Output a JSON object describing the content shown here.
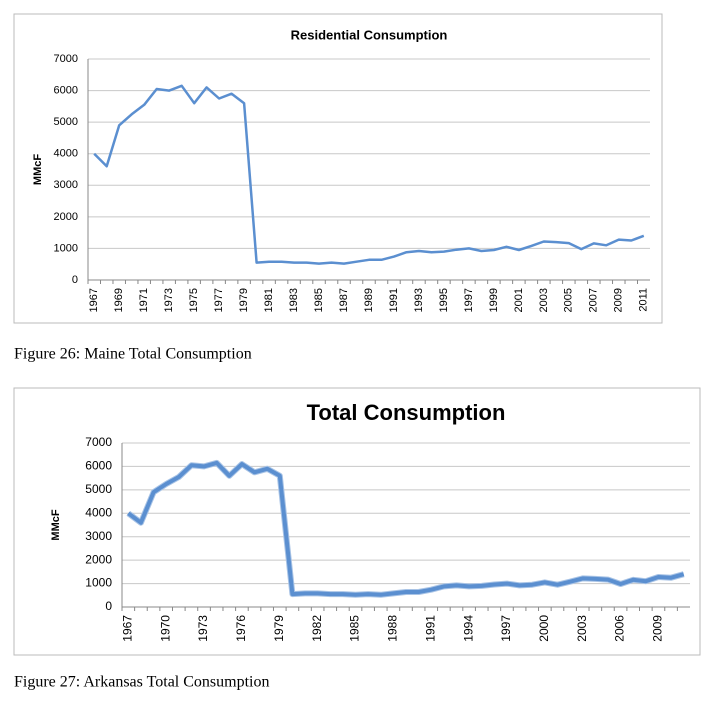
{
  "chart_data": [
    {
      "type": "line",
      "title": "Residential Consumption",
      "ylabel": "MMcF",
      "caption": "Figure 26: Maine Total Consumption",
      "categories": [
        "1967",
        null,
        "1969",
        null,
        "1971",
        null,
        "1973",
        null,
        "1975",
        null,
        "1977",
        null,
        "1979",
        null,
        "1981",
        null,
        "1983",
        null,
        "1985",
        null,
        "1987",
        null,
        "1989",
        null,
        "1991",
        null,
        "1993",
        null,
        "1995",
        null,
        "1997",
        null,
        "1999",
        null,
        "2001",
        null,
        "2003",
        null,
        "2005",
        null,
        "2007",
        null,
        "2009",
        null,
        "2011"
      ],
      "series": [
        {
          "name": "Residential Consumption",
          "color": "#5b8fd0",
          "values": [
            4000,
            3600,
            4900,
            5250,
            5550,
            6050,
            6000,
            6150,
            5600,
            6100,
            5750,
            5900,
            5600,
            550,
            580,
            580,
            550,
            550,
            520,
            550,
            520,
            580,
            640,
            640,
            740,
            880,
            920,
            880,
            900,
            960,
            1000,
            920,
            950,
            1050,
            950,
            1080,
            1220,
            1200,
            1170,
            980,
            1160,
            1100,
            1280,
            1250,
            1400
          ]
        }
      ],
      "ylim": [
        0,
        7000
      ],
      "yticks": [
        0,
        1000,
        2000,
        3000,
        4000,
        5000,
        6000,
        7000
      ],
      "grid": true
    },
    {
      "type": "line",
      "title": "Total Consumption",
      "ylabel": "MMcF",
      "caption": "Figure 27: Arkansas Total Consumption",
      "categories": [
        "1967",
        null,
        null,
        "1970",
        null,
        null,
        "1973",
        null,
        null,
        "1976",
        null,
        null,
        "1979",
        null,
        null,
        "1982",
        null,
        null,
        "1985",
        null,
        null,
        "1988",
        null,
        null,
        "1991",
        null,
        null,
        "1994",
        null,
        null,
        "1997",
        null,
        null,
        "2000",
        null,
        null,
        "2003",
        null,
        null,
        "2006",
        null,
        null,
        "2009",
        null,
        null
      ],
      "series": [
        {
          "name": "Total Consumption",
          "color": "#5b8fd0",
          "values": [
            4000,
            3600,
            4900,
            5250,
            5550,
            6050,
            6000,
            6150,
            5600,
            6100,
            5750,
            5900,
            5600,
            550,
            580,
            580,
            550,
            550,
            520,
            550,
            520,
            580,
            640,
            640,
            740,
            880,
            920,
            880,
            900,
            960,
            1000,
            920,
            950,
            1050,
            950,
            1080,
            1220,
            1200,
            1170,
            980,
            1160,
            1100,
            1280,
            1250,
            1400
          ]
        }
      ],
      "ylim": [
        0,
        7000
      ],
      "yticks": [
        0,
        1000,
        2000,
        3000,
        4000,
        5000,
        6000,
        7000
      ],
      "grid": true
    }
  ]
}
